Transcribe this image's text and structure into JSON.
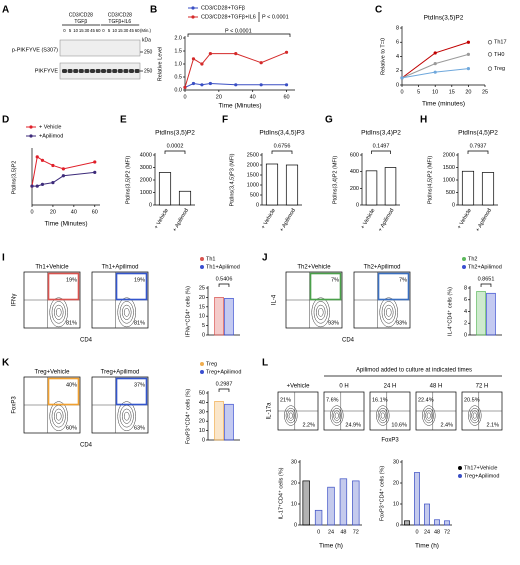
{
  "blot": {
    "panel": "A",
    "groups": [
      [
        "CD3/CD28",
        "TGFβ"
      ],
      [
        "CD3/CD28",
        "TGFβ+IL6"
      ]
    ],
    "lanes": [
      "0",
      "5",
      "10",
      "15",
      "30",
      "45",
      "60"
    ],
    "unit": "(Min.)",
    "rows": [
      "p-PIKFYVE (S307)",
      "PIKFYVE"
    ],
    "kda": "kDa",
    "markers": [
      "250",
      "250"
    ]
  },
  "chart_data": [
    {
      "panel": "B",
      "type": "line",
      "y_label": "Relative Level",
      "x_label": "Time (Minutes)",
      "x": [
        0,
        5,
        10,
        15,
        30,
        45,
        60
      ],
      "xlim": [
        0,
        65
      ],
      "xticks": [
        0,
        20,
        40,
        60
      ],
      "ylim": [
        0,
        2
      ],
      "yticks": [
        {
          "value": 0,
          "label": "0.0"
        },
        0.5,
        {
          "value": 1,
          "label": "1.0"
        },
        1.5,
        {
          "value": 2,
          "label": "2.0"
        }
      ],
      "legend": "top",
      "annotations": [
        "P < 0.0001",
        "P < 0.0001"
      ],
      "series": [
        {
          "name": "CD3/CD28+TGFβ",
          "color": "#3a4fc4",
          "values": [
            0.1,
            0.25,
            0.2,
            0.25,
            0.2,
            0.2,
            0.2
          ]
        },
        {
          "name": "CD3/CD28+TGFβ+IL6",
          "color": "#d42a2a",
          "values": [
            0.1,
            1.2,
            1.0,
            1.4,
            1.4,
            1.05,
            1.45
          ]
        }
      ]
    },
    {
      "panel": "C",
      "type": "line",
      "title": "PtdIns(3,5)P2",
      "y_label": "Relative to T=0",
      "x_label": "Time (minutes)",
      "x": [
        0,
        10,
        20
      ],
      "xlim": [
        0,
        25
      ],
      "xticks": [
        0,
        5,
        10,
        15,
        20,
        25
      ],
      "ylim": [
        0,
        8
      ],
      "yticks": [
        0,
        2,
        4,
        6,
        8
      ],
      "legend": "right",
      "series": [
        {
          "name": "Th17",
          "color": "#c00000",
          "values": [
            1,
            4.5,
            6
          ]
        },
        {
          "name": "TH0",
          "color": "#9a9a9a",
          "values": [
            1,
            3,
            4.3
          ]
        },
        {
          "name": "Treg",
          "color": "#6fa8dc",
          "values": [
            1,
            1.8,
            2.3
          ]
        }
      ]
    },
    {
      "panel": "D",
      "type": "line",
      "y_label": "PtdIns(3,5)P2",
      "x_label": "Time (Minutes)",
      "x": [
        0,
        5,
        10,
        20,
        30,
        60
      ],
      "xlim": [
        0,
        65
      ],
      "xticks": [
        0,
        20,
        40,
        60
      ],
      "ylim": [
        0,
        3.2
      ],
      "legend": "top",
      "series": [
        {
          "name": "+ Vehicle",
          "color": "#e0202a",
          "values": [
            1.1,
            2.8,
            2.6,
            2.3,
            2.1,
            2.5
          ]
        },
        {
          "name": "+Apilimod",
          "color": "#3d2b7a",
          "values": [
            1.1,
            1.1,
            1.2,
            1.3,
            1.7,
            1.9
          ]
        }
      ]
    },
    {
      "panel": "E",
      "type": "bar",
      "title": "PtdIns(3,5)P2",
      "y_label": "PtdIns(3,5)P2 (MFI)",
      "categories": [
        "+ Vehicle",
        "+ Apilimod"
      ],
      "values": [
        2600,
        1100
      ],
      "color": "#ffffff",
      "edge": "#000000",
      "ylim": [
        0,
        4000
      ],
      "yticks": [
        0,
        1000,
        2000,
        3000,
        4000
      ],
      "annotations": [
        "0.0002"
      ]
    },
    {
      "panel": "F",
      "type": "bar",
      "title": "PtdIns(3,4,5)P3",
      "y_label": "PtdIns(3,4,5)P3 (MFI)",
      "categories": [
        "+ Vehicle",
        "+ Apilimod"
      ],
      "values": [
        2050,
        2000
      ],
      "color": "#ffffff",
      "edge": "#000000",
      "ylim": [
        0,
        2500
      ],
      "yticks": [
        0,
        500,
        1000,
        1500,
        2000,
        2500
      ],
      "annotations": [
        "0.6756"
      ]
    },
    {
      "panel": "G",
      "type": "bar",
      "title": "PtdIns(3,4)P2",
      "y_label": "PtdIns(3,4)P2 (MFI)",
      "categories": [
        "+ Vehicle",
        "+ Apilimod"
      ],
      "values": [
        410,
        450
      ],
      "color": "#ffffff",
      "edge": "#000000",
      "ylim": [
        0,
        600
      ],
      "yticks": [
        0,
        200,
        400,
        600
      ],
      "annotations": [
        "0.1497"
      ]
    },
    {
      "panel": "H",
      "type": "bar",
      "title": "PtdIns(4,5)P2",
      "y_label": "PtdIns(4,5)P2 (MFI)",
      "categories": [
        "+ Vehicle",
        "+ Apilimod"
      ],
      "values": [
        1350,
        1300
      ],
      "color": "#ffffff",
      "edge": "#000000",
      "ylim": [
        0,
        2000
      ],
      "yticks": [
        0,
        500,
        1000,
        1500,
        2000
      ],
      "annotations": [
        "0.7937"
      ]
    },
    {
      "type": "bar",
      "y_label": "IFNγ⁺CD4⁺ cells (%)",
      "categories": [
        null
      ],
      "legend": "top",
      "ylim": [
        0,
        25
      ],
      "yticks": [
        0,
        5,
        10,
        15,
        20,
        25
      ],
      "annotations": [
        "0.5406"
      ],
      "series": [
        {
          "name": "Th1",
          "color": "#d9534f",
          "values": [
            20
          ]
        },
        {
          "name": "Th1+Apilimod",
          "color": "#3b4fd0",
          "values": [
            19.5
          ]
        }
      ]
    },
    {
      "type": "bar",
      "y_label": "IL-4⁺CD4⁺ cells (%)",
      "categories": [
        null
      ],
      "legend": "top",
      "ylim": [
        0,
        8
      ],
      "yticks": [
        0,
        2,
        4,
        6,
        8
      ],
      "annotations": [
        "0.8651"
      ],
      "series": [
        {
          "name": "Th2",
          "color": "#5cb85c",
          "values": [
            7.4
          ]
        },
        {
          "name": "Th2+Apilimod",
          "color": "#3b4fd0",
          "values": [
            7.1
          ]
        }
      ]
    },
    {
      "type": "bar",
      "y_label": "FoxP3⁺CD4⁺ cells (%)",
      "categories": [
        null
      ],
      "legend": "top",
      "ylim": [
        0,
        50
      ],
      "yticks": [
        0,
        10,
        20,
        30,
        40,
        50
      ],
      "annotations": [
        "0.2987"
      ],
      "series": [
        {
          "name": "Treg",
          "color": "#f0ad4e",
          "values": [
            41
          ]
        },
        {
          "name": "Treg+Apilimod",
          "color": "#3b4fd0",
          "values": [
            38
          ]
        }
      ]
    },
    {
      "type": "bar",
      "y_label": "IL-17⁺CD4⁺ cells (%)",
      "x_label": "Time (h)",
      "categories": [
        null,
        "0",
        "24",
        "48",
        "72"
      ],
      "ylim": [
        0,
        30
      ],
      "yticks": [
        0,
        10,
        20,
        30
      ],
      "series": [
        {
          "color": "#000000",
          "values": [
            21,
            null,
            null,
            null,
            null
          ]
        },
        {
          "color": "#3b4fc4",
          "values": [
            null,
            7,
            18,
            22,
            21
          ]
        }
      ]
    },
    {
      "type": "bar",
      "y_label": "FoxP3⁺CD4⁺ cells (%)",
      "x_label": "Time (h)",
      "categories": [
        null,
        "0",
        "24",
        "48",
        "72"
      ],
      "ylim": [
        0,
        30
      ],
      "yticks": [
        0,
        10,
        20,
        30
      ],
      "legend": "right",
      "series": [
        {
          "name": "Th17+Vehicle",
          "color": "#000000",
          "values": [
            2,
            null,
            null,
            null,
            null
          ]
        },
        {
          "name": "Treg+Apilimod",
          "color": "#3b4fc4",
          "values": [
            null,
            25,
            10,
            2.5,
            2
          ]
        }
      ]
    }
  ],
  "flow": [
    {
      "panel": "I",
      "y_label": "IFNγ",
      "x_label": "CD4",
      "plots": [
        {
          "title": "Th1+Vehicle",
          "gate_color": "#d9534f",
          "quadrants": {
            "upper_right": "19%",
            "lower_right": "81%"
          }
        },
        {
          "title": "Th1+Apilimod",
          "gate_color": "#3355cc",
          "quadrants": {
            "upper_right": "19%",
            "lower_right": "81%"
          }
        }
      ]
    },
    {
      "panel": "J",
      "y_label": "IL-4",
      "x_label": "CD4",
      "plots": [
        {
          "title": "Th2+Vehicle",
          "gate_color": "#4aa04a",
          "quadrants": {
            "upper_right": "7%",
            "lower_right": "93%"
          }
        },
        {
          "title": "Th2+Apilimod",
          "gate_color": "#3a6fc0",
          "quadrants": {
            "upper_right": "7%",
            "lower_right": "93%"
          }
        }
      ]
    },
    {
      "panel": "K",
      "y_label": "FoxP3",
      "x_label": "CD4",
      "plots": [
        {
          "title": "Treg+Vehicle",
          "gate_color": "#f0a030",
          "quadrants": {
            "upper_right": "40%",
            "lower_right": "60%"
          }
        },
        {
          "title": "Treg+Apilimod",
          "gate_color": "#3355cc",
          "quadrants": {
            "upper_right": "37%",
            "lower_right": "63%"
          }
        }
      ]
    },
    {
      "panel": "L",
      "header": "Apilimod added to culture at indicated times",
      "y_label": "IL-17a",
      "x_label": "FoxP3",
      "plots": [
        {
          "title": "+Vehicle",
          "quadrants": {
            "upper_left": "21%",
            "lower_right": "2.2%"
          }
        },
        {
          "title": "0 H",
          "quadrants": {
            "upper_left": "7.6%",
            "lower_right": "24.9%"
          }
        },
        {
          "title": "24 H",
          "quadrants": {
            "upper_left": "16.1%",
            "lower_right": "10.6%"
          }
        },
        {
          "title": "48 H",
          "quadrants": {
            "upper_left": "22.4%",
            "lower_right": "2.4%"
          }
        },
        {
          "title": "72 H",
          "quadrants": {
            "upper_left": "20.5%",
            "lower_right": "2.1%"
          }
        }
      ]
    }
  ]
}
